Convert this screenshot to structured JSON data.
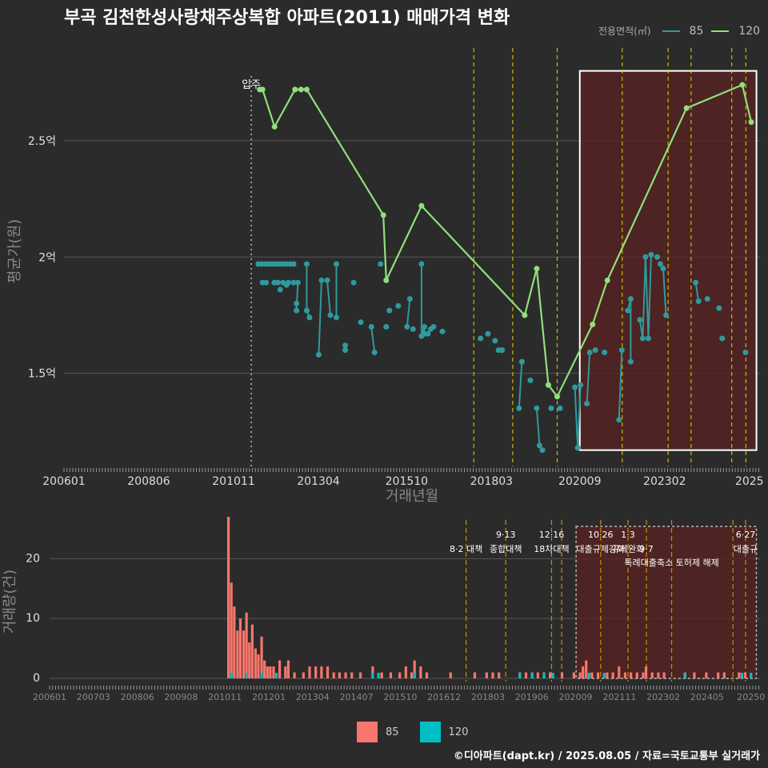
{
  "title": "부곡 김천한성사랑채주상복합 아파트(2011) 매매가격 변화",
  "legend_top": {
    "title": "전용면적(㎡)",
    "items": [
      {
        "label": "85",
        "color": "#2f9a9e"
      },
      {
        "label": "120",
        "color": "#90e07a"
      }
    ]
  },
  "legend_bottom": {
    "items": [
      {
        "label": "85",
        "color": "#f8766d"
      },
      {
        "label": "120",
        "color": "#00bfc4"
      }
    ]
  },
  "credit": "©디아파트(dapt.kr) / 2025.08.05 / 자료=국토교통부 실거래가",
  "chart_data": [
    {
      "type": "line",
      "title": "부곡 김천한성사랑채주상복합 아파트(2011) 매매가격 변화",
      "xlabel": "거래년월",
      "ylabel": "평균가(원)",
      "x_ticks": [
        "200601",
        "200806",
        "201011",
        "201304",
        "201510",
        "201803",
        "202009",
        "202302",
        "2025"
      ],
      "y_ticks": [
        {
          "value": 1.5,
          "label": "1.5억"
        },
        {
          "value": 2.0,
          "label": "2억"
        },
        {
          "value": 2.5,
          "label": "2.5억"
        }
      ],
      "xlim": [
        2006.0,
        2025.7
      ],
      "ylim": [
        1.1,
        2.95
      ],
      "move_in": {
        "x": 2011.3,
        "label": "입주"
      },
      "policy_lines": [
        2017.6,
        2018.7,
        2019.96,
        2021.8,
        2023.1,
        2023.75,
        2024.9,
        2025.3
      ],
      "highlight_range": [
        2020.6,
        2025.6,
        1.17,
        2.8
      ],
      "series": [
        {
          "name": "120",
          "color": "#90e07a",
          "points": [
            [
              2011.54,
              2.72
            ],
            [
              2011.62,
              2.72
            ],
            [
              2011.96,
              2.56
            ],
            [
              2012.54,
              2.72
            ],
            [
              2012.71,
              2.72
            ],
            [
              2012.87,
              2.72
            ],
            [
              2015.04,
              2.18
            ],
            [
              2015.12,
              1.9
            ],
            [
              2016.12,
              2.22
            ],
            [
              2019.04,
              1.75
            ],
            [
              2019.38,
              1.95
            ],
            [
              2019.71,
              1.45
            ],
            [
              2019.96,
              1.4
            ],
            [
              2020.96,
              1.71
            ],
            [
              2021.38,
              1.9
            ],
            [
              2023.62,
              2.64
            ],
            [
              2025.2,
              2.74
            ],
            [
              2025.45,
              2.58
            ]
          ]
        },
        {
          "name": "85",
          "color": "#2f9a9e",
          "points": [
            [
              2011.5,
              1.97
            ],
            [
              2011.6,
              1.97
            ],
            [
              2011.7,
              1.97
            ],
            [
              2011.8,
              1.97
            ],
            [
              2011.9,
              1.97
            ],
            [
              2012.0,
              1.97
            ],
            [
              2012.1,
              1.97
            ],
            [
              2012.2,
              1.97
            ],
            [
              2012.3,
              1.97
            ],
            [
              2012.4,
              1.97
            ],
            [
              2012.5,
              1.97
            ],
            [
              2011.62,
              1.89
            ],
            [
              2011.72,
              1.89
            ],
            [
              2011.95,
              1.89
            ],
            [
              2012.05,
              1.89
            ],
            [
              2012.2,
              1.89
            ],
            [
              2012.35,
              1.89
            ],
            [
              2012.5,
              1.89
            ],
            [
              2012.12,
              1.86
            ],
            [
              2012.3,
              1.88
            ],
            [
              2012.58,
              1.8
            ],
            [
              2012.58,
              1.77
            ],
            [
              2012.62,
              1.89
            ],
            [
              2012.87,
              1.97
            ],
            [
              2012.87,
              1.77
            ],
            [
              2012.95,
              1.74
            ],
            [
              2013.21,
              1.58
            ],
            [
              2013.29,
              1.9
            ],
            [
              2013.45,
              1.9
            ],
            [
              2013.54,
              1.75
            ],
            [
              2013.71,
              1.74
            ],
            [
              2013.71,
              1.97
            ],
            [
              2013.96,
              1.6
            ],
            [
              2013.96,
              1.62
            ],
            [
              2014.2,
              1.89
            ],
            [
              2014.4,
              1.72
            ],
            [
              2014.7,
              1.7
            ],
            [
              2014.79,
              1.59
            ],
            [
              2014.96,
              1.97
            ],
            [
              2015.12,
              1.7
            ],
            [
              2015.21,
              1.77
            ],
            [
              2015.46,
              1.79
            ],
            [
              2015.71,
              1.7
            ],
            [
              2015.79,
              1.82
            ],
            [
              2015.88,
              1.69
            ],
            [
              2016.12,
              1.97
            ],
            [
              2016.12,
              1.66
            ],
            [
              2016.2,
              1.7
            ],
            [
              2016.2,
              1.67
            ],
            [
              2016.3,
              1.67
            ],
            [
              2016.38,
              1.69
            ],
            [
              2016.46,
              1.7
            ],
            [
              2016.71,
              1.68
            ],
            [
              2017.79,
              1.65
            ],
            [
              2018.0,
              1.67
            ],
            [
              2018.2,
              1.64
            ],
            [
              2018.3,
              1.6
            ],
            [
              2018.4,
              1.6
            ],
            [
              2018.88,
              1.35
            ],
            [
              2018.96,
              1.55
            ],
            [
              2019.2,
              1.47
            ],
            [
              2019.38,
              1.35
            ],
            [
              2019.46,
              1.19
            ],
            [
              2019.54,
              1.17
            ],
            [
              2019.79,
              1.35
            ],
            [
              2020.04,
              1.35
            ],
            [
              2020.46,
              1.44
            ],
            [
              2020.54,
              1.18
            ],
            [
              2020.62,
              1.45
            ],
            [
              2020.8,
              1.37
            ],
            [
              2020.88,
              1.59
            ],
            [
              2021.04,
              1.6
            ],
            [
              2021.3,
              1.59
            ],
            [
              2021.71,
              1.3
            ],
            [
              2021.79,
              1.6
            ],
            [
              2021.96,
              1.77
            ],
            [
              2022.04,
              1.82
            ],
            [
              2022.04,
              1.55
            ],
            [
              2022.3,
              1.73
            ],
            [
              2022.38,
              1.65
            ],
            [
              2022.46,
              2.0
            ],
            [
              2022.54,
              1.65
            ],
            [
              2022.62,
              2.01
            ],
            [
              2022.79,
              2.0
            ],
            [
              2022.88,
              1.97
            ],
            [
              2022.96,
              1.95
            ],
            [
              2023.04,
              1.75
            ],
            [
              2023.88,
              1.89
            ],
            [
              2023.96,
              1.81
            ],
            [
              2024.21,
              1.82
            ],
            [
              2024.54,
              1.78
            ],
            [
              2024.63,
              1.65
            ],
            [
              2025.29,
              1.59
            ]
          ]
        }
      ]
    },
    {
      "type": "bar",
      "title": "거래량",
      "xlabel": "",
      "ylabel": "거래량(건)",
      "x_ticks": [
        "200601",
        "200703",
        "200806",
        "200908",
        "201011",
        "201201",
        "201304",
        "201407",
        "201510",
        "201612",
        "201803",
        "201906",
        "202009",
        "202111",
        "202302",
        "202405",
        "20250"
      ],
      "y_ticks": [
        0,
        10,
        20
      ],
      "xlim": [
        2006.0,
        2025.7
      ],
      "ylim": [
        0,
        27
      ],
      "highlight_range": [
        2020.6,
        2025.6
      ],
      "policy_lines": [
        2017.55,
        2018.65,
        2019.92,
        2020.2,
        2021.28,
        2022.04,
        2022.55,
        2023.25,
        2024.95,
        2025.3
      ],
      "annotations": [
        {
          "label": "8·2 대책",
          "x": 2017.55,
          "line": 1
        },
        {
          "label": "9·13",
          "x": 2018.65,
          "line": 0
        },
        {
          "label": "종합대책",
          "x": 2018.65,
          "line": 1
        },
        {
          "label": "12·16",
          "x": 2019.92,
          "line": 0
        },
        {
          "label": "18차대책",
          "x": 2019.92,
          "line": 1
        },
        {
          "label": "10·26",
          "x": 2021.28,
          "line": 0
        },
        {
          "label": "대출규제강화",
          "x": 2021.28,
          "line": 1
        },
        {
          "label": "1·3",
          "x": 2022.04,
          "line": 0
        },
        {
          "label": "규제완화",
          "x": 2022.04,
          "line": 1
        },
        {
          "label": "9·7",
          "x": 2022.55,
          "line": 1
        },
        {
          "label": "특례대출축소 토허제 해제",
          "x": 2023.25,
          "line": 2
        },
        {
          "label": "6·27",
          "x": 2025.3,
          "line": 0
        },
        {
          "label": "대출규",
          "x": 2025.3,
          "line": 1
        }
      ],
      "series": [
        {
          "name": "85",
          "color": "#f8766d",
          "points": [
            [
              2010.96,
              27
            ],
            [
              2011.04,
              16
            ],
            [
              2011.12,
              12
            ],
            [
              2011.21,
              8
            ],
            [
              2011.29,
              10
            ],
            [
              2011.38,
              8
            ],
            [
              2011.46,
              11
            ],
            [
              2011.54,
              6
            ],
            [
              2011.62,
              9
            ],
            [
              2011.71,
              5
            ],
            [
              2011.79,
              4
            ],
            [
              2011.88,
              7
            ],
            [
              2011.96,
              3
            ],
            [
              2012.04,
              2
            ],
            [
              2012.12,
              2
            ],
            [
              2012.21,
              2
            ],
            [
              2012.38,
              3
            ],
            [
              2012.54,
              2
            ],
            [
              2012.62,
              3
            ],
            [
              2012.79,
              1
            ],
            [
              2013.04,
              1
            ],
            [
              2013.21,
              2
            ],
            [
              2013.38,
              2
            ],
            [
              2013.54,
              2
            ],
            [
              2013.71,
              2
            ],
            [
              2013.88,
              1
            ],
            [
              2014.04,
              1
            ],
            [
              2014.21,
              1
            ],
            [
              2014.38,
              1
            ],
            [
              2014.62,
              1
            ],
            [
              2014.96,
              2
            ],
            [
              2015.21,
              1
            ],
            [
              2015.46,
              1
            ],
            [
              2015.71,
              1
            ],
            [
              2015.88,
              2
            ],
            [
              2016.04,
              1
            ],
            [
              2016.12,
              3
            ],
            [
              2016.29,
              2
            ],
            [
              2016.46,
              1
            ],
            [
              2017.12,
              1
            ],
            [
              2017.79,
              1
            ],
            [
              2018.12,
              1
            ],
            [
              2018.29,
              1
            ],
            [
              2018.46,
              1
            ],
            [
              2019.04,
              1
            ],
            [
              2019.21,
              1
            ],
            [
              2019.38,
              1
            ],
            [
              2019.54,
              1
            ],
            [
              2019.71,
              1
            ],
            [
              2019.88,
              1
            ],
            [
              2020.21,
              1
            ],
            [
              2020.54,
              1
            ],
            [
              2020.71,
              1
            ],
            [
              2020.79,
              2
            ],
            [
              2020.88,
              3
            ],
            [
              2021.04,
              1
            ],
            [
              2021.21,
              1
            ],
            [
              2021.46,
              1
            ],
            [
              2021.62,
              1
            ],
            [
              2021.79,
              2
            ],
            [
              2021.96,
              1
            ],
            [
              2022.12,
              1
            ],
            [
              2022.29,
              1
            ],
            [
              2022.46,
              1
            ],
            [
              2022.54,
              2
            ],
            [
              2022.71,
              1
            ],
            [
              2022.88,
              1
            ],
            [
              2023.04,
              1
            ],
            [
              2023.62,
              1
            ],
            [
              2023.88,
              1
            ],
            [
              2024.21,
              1
            ],
            [
              2024.54,
              1
            ],
            [
              2024.71,
              1
            ],
            [
              2025.12,
              1
            ],
            [
              2025.29,
              1
            ]
          ]
        },
        {
          "name": "120",
          "color": "#00bfc4",
          "points": [
            [
              2011.04,
              1
            ],
            [
              2011.46,
              1
            ],
            [
              2011.88,
              1
            ],
            [
              2012.29,
              1
            ],
            [
              2014.96,
              1
            ],
            [
              2015.12,
              1
            ],
            [
              2016.12,
              1
            ],
            [
              2019.04,
              1
            ],
            [
              2019.38,
              1
            ],
            [
              2019.71,
              1
            ],
            [
              2019.96,
              1
            ],
            [
              2020.96,
              1
            ],
            [
              2021.38,
              1
            ],
            [
              2023.62,
              1
            ],
            [
              2025.2,
              1
            ],
            [
              2025.45,
              1
            ]
          ]
        }
      ]
    }
  ]
}
